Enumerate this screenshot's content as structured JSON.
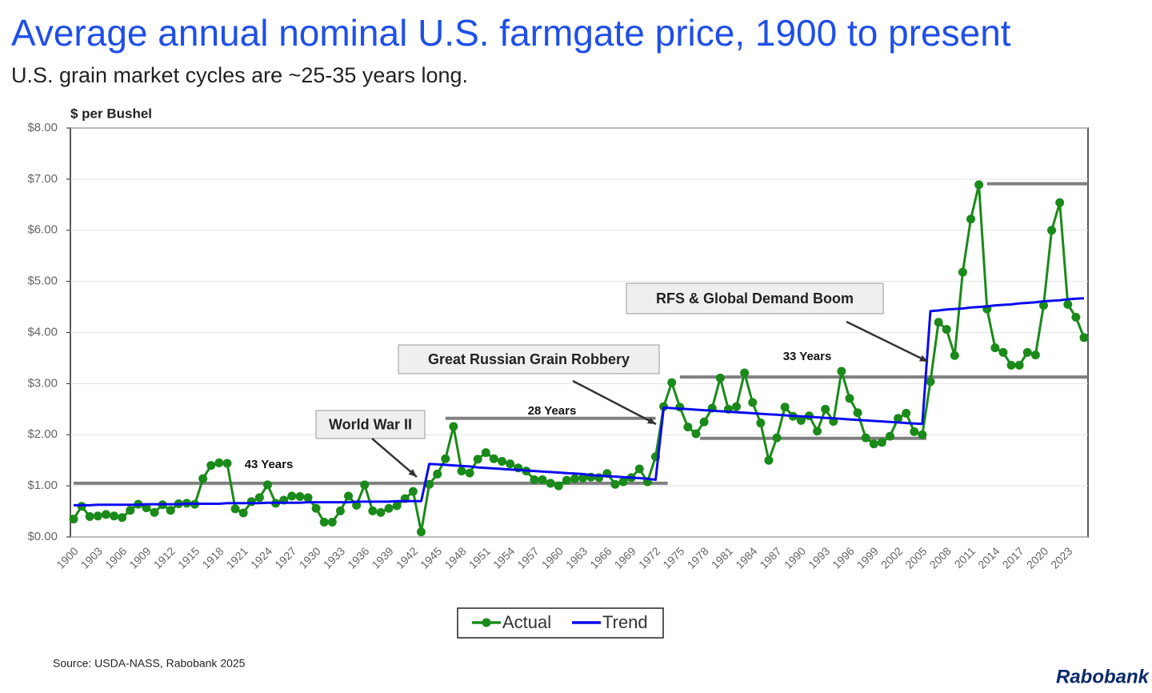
{
  "chart_data": {
    "type": "line",
    "title": "Average annual nominal U.S. farmgate price, 1900 to present",
    "subtitle": "U.S. grain market cycles are ~25-35 years long.",
    "y_label": "$ per Bushel",
    "source": "Source: USDA-NASS, Rabobank 2025",
    "logo": "Rabobank",
    "categories": [
      "1900",
      null,
      null,
      "1903",
      null,
      null,
      "1906",
      null,
      null,
      "1909",
      null,
      null,
      "1912",
      null,
      null,
      "1915",
      null,
      null,
      "1918",
      null,
      null,
      "1921",
      null,
      null,
      "1924",
      null,
      null,
      "1927",
      null,
      null,
      "1930",
      null,
      null,
      "1933",
      null,
      null,
      "1936",
      null,
      null,
      "1939",
      null,
      null,
      "1942",
      null,
      null,
      "1945",
      null,
      null,
      "1948",
      null,
      null,
      "1951",
      null,
      null,
      "1954",
      null,
      null,
      "1957",
      null,
      null,
      "1960",
      null,
      null,
      "1963",
      null,
      null,
      "1966",
      null,
      null,
      "1969",
      null,
      null,
      "1972",
      null,
      null,
      "1975",
      null,
      null,
      "1978",
      null,
      null,
      "1981",
      null,
      null,
      "1984",
      null,
      null,
      "1987",
      null,
      null,
      "1990",
      null,
      null,
      "1993",
      null,
      null,
      "1996",
      null,
      null,
      "1999",
      null,
      null,
      "2002",
      null,
      null,
      "2005",
      null,
      null,
      "2008",
      null,
      null,
      "2011",
      null,
      null,
      "2014",
      null,
      null,
      "2017",
      null,
      null,
      "2020",
      null,
      null,
      "2023",
      null,
      null
    ],
    "series": [
      {
        "name": "Actual",
        "color": "#1a8a1a",
        "markers": true,
        "values": [
          0.35,
          0.6,
          0.4,
          0.41,
          0.44,
          0.41,
          0.38,
          0.52,
          0.64,
          0.57,
          0.48,
          0.63,
          0.52,
          0.65,
          0.66,
          0.64,
          1.14,
          1.4,
          1.45,
          1.44,
          0.55,
          0.47,
          0.69,
          0.77,
          1.02,
          0.66,
          0.72,
          0.8,
          0.79,
          0.77,
          0.56,
          0.29,
          0.29,
          0.51,
          0.8,
          0.62,
          1.02,
          0.51,
          0.48,
          0.56,
          0.61,
          0.75,
          0.89,
          0.1,
          1.03,
          1.23,
          1.53,
          2.16,
          1.29,
          1.25,
          1.52,
          1.65,
          1.53,
          1.48,
          1.43,
          1.35,
          1.29,
          1.12,
          1.12,
          1.05,
          1.0,
          1.11,
          1.14,
          1.15,
          1.17,
          1.16,
          1.24,
          1.03,
          1.08,
          1.16,
          1.33,
          1.08,
          1.57,
          2.55,
          3.02,
          2.54,
          2.15,
          2.02,
          2.25,
          2.52,
          3.11,
          2.5,
          2.55,
          3.21,
          2.63,
          2.23,
          1.5,
          1.94,
          2.54,
          2.36,
          2.28,
          2.37,
          2.07,
          2.5,
          2.26,
          3.24,
          2.71,
          2.43,
          1.94,
          1.82,
          1.85,
          1.97,
          2.32,
          2.42,
          2.06,
          2.0,
          3.04,
          4.2,
          4.06,
          3.55,
          5.18,
          6.22,
          6.89,
          4.46,
          3.7,
          3.61,
          3.36,
          3.36,
          3.61,
          3.56,
          4.53,
          6.0,
          6.54,
          4.55,
          4.3,
          3.9
        ]
      },
      {
        "name": "Trend",
        "color": "#0a0aee",
        "markers": false,
        "values": [
          0.62,
          0.62,
          0.62,
          0.63,
          0.63,
          0.63,
          0.63,
          0.63,
          0.63,
          0.64,
          0.64,
          0.64,
          0.64,
          0.64,
          0.65,
          0.65,
          0.65,
          0.65,
          0.65,
          0.66,
          0.66,
          0.66,
          0.66,
          0.66,
          0.67,
          0.67,
          0.67,
          0.67,
          0.67,
          0.68,
          0.68,
          0.68,
          0.68,
          0.68,
          0.68,
          0.69,
          0.69,
          0.69,
          0.69,
          0.69,
          0.7,
          0.7,
          0.7,
          0.7,
          1.43,
          1.42,
          1.41,
          1.4,
          1.39,
          1.38,
          1.36,
          1.35,
          1.34,
          1.33,
          1.32,
          1.31,
          1.3,
          1.29,
          1.28,
          1.27,
          1.26,
          1.25,
          1.24,
          1.23,
          1.21,
          1.2,
          1.19,
          1.18,
          1.17,
          1.16,
          1.15,
          1.14,
          1.12,
          2.53,
          2.52,
          2.51,
          2.5,
          2.49,
          2.48,
          2.47,
          2.46,
          2.45,
          2.44,
          2.43,
          2.42,
          2.41,
          2.4,
          2.39,
          2.38,
          2.37,
          2.36,
          2.35,
          2.34,
          2.33,
          2.32,
          2.31,
          2.3,
          2.29,
          2.28,
          2.27,
          2.26,
          2.25,
          2.24,
          2.23,
          2.22,
          2.21,
          4.42,
          4.43,
          4.45,
          4.46,
          4.47,
          4.49,
          4.5,
          4.51,
          4.53,
          4.54,
          4.55,
          4.57,
          4.58,
          4.59,
          4.61,
          4.62,
          4.63,
          4.65,
          4.66,
          4.67
        ]
      }
    ],
    "ylim": [
      0,
      8
    ],
    "yticks": [
      {
        "value": 0,
        "label": "$0.00"
      },
      {
        "value": 1,
        "label": "$1.00"
      },
      {
        "value": 2,
        "label": "$2.00"
      },
      {
        "value": 3,
        "label": "$3.00"
      },
      {
        "value": 4,
        "label": "$4.00"
      },
      {
        "value": 5,
        "label": "$5.00"
      },
      {
        "value": 6,
        "label": "$6.00"
      },
      {
        "value": 7,
        "label": "$7.00"
      },
      {
        "value": 8,
        "label": "$8.00"
      }
    ],
    "grid": true,
    "legend": "bottom",
    "reference_lines": [
      {
        "value": 1.05,
        "from": 1900,
        "to": 1973.5
      },
      {
        "value": 2.32,
        "from": 1946,
        "to": 1972
      },
      {
        "value": 3.13,
        "from": 1975,
        "to": 2025.5
      },
      {
        "value": 1.93,
        "from": 1977.5,
        "to": 2005.5
      },
      {
        "value": 6.91,
        "from": 2013,
        "to": 2025.5
      }
    ],
    "annotations": [
      "43 Years",
      "28 Years",
      "33 Years"
    ],
    "callouts": [
      "World War II",
      "Great Russian Grain Robbery",
      "RFS & Global Demand Boom"
    ]
  }
}
